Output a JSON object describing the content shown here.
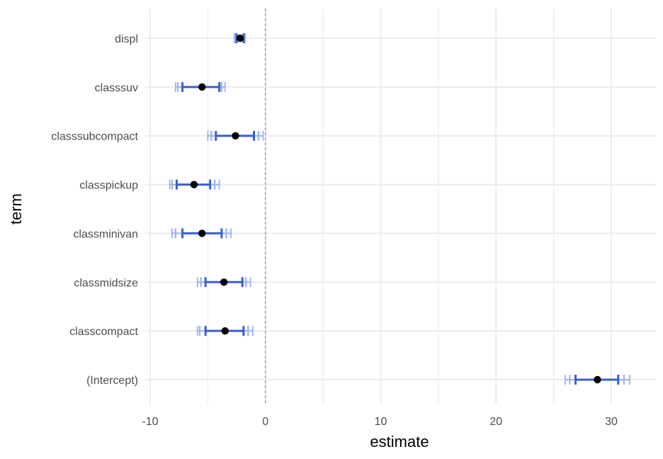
{
  "chart_data": {
    "type": "coefficient-plot",
    "xlabel": "estimate",
    "ylabel": "term",
    "xlim": [
      -10,
      33.5
    ],
    "x_ticks": [
      -10,
      0,
      10,
      20,
      30
    ],
    "x_tick_labels": [
      "-10",
      "0",
      "10",
      "20",
      "30"
    ],
    "reference_line": 0,
    "grid": true,
    "terms": [
      "displ",
      "classsuv",
      "classsubcompact",
      "classpickup",
      "classminivan",
      "classmidsize",
      "classcompact",
      "(Intercept)"
    ],
    "estimates": [
      -2.2,
      -5.5,
      -2.6,
      -6.2,
      -5.5,
      -3.6,
      -3.5,
      28.8
    ],
    "intervals": [
      {
        "inner": [
          -2.5,
          -1.9
        ],
        "mid": [
          -2.6,
          -1.85
        ],
        "outer": [
          -2.7,
          -1.75
        ]
      },
      {
        "inner": [
          -7.2,
          -4.0
        ],
        "mid": [
          -7.6,
          -3.8
        ],
        "outer": [
          -7.8,
          -3.5
        ]
      },
      {
        "inner": [
          -4.3,
          -1.0
        ],
        "mid": [
          -4.7,
          -0.6
        ],
        "outer": [
          -5.0,
          -0.2
        ]
      },
      {
        "inner": [
          -7.7,
          -4.8
        ],
        "mid": [
          -8.1,
          -4.4
        ],
        "outer": [
          -8.3,
          -4.0
        ]
      },
      {
        "inner": [
          -7.2,
          -3.8
        ],
        "mid": [
          -7.8,
          -3.4
        ],
        "outer": [
          -8.1,
          -3.0
        ]
      },
      {
        "inner": [
          -5.2,
          -2.0
        ],
        "mid": [
          -5.6,
          -1.7
        ],
        "outer": [
          -5.9,
          -1.3
        ]
      },
      {
        "inner": [
          -5.2,
          -1.9
        ],
        "mid": [
          -5.7,
          -1.5
        ],
        "outer": [
          -5.9,
          -1.1
        ]
      },
      {
        "inner": [
          26.9,
          30.6
        ],
        "mid": [
          26.4,
          31.1
        ],
        "outer": [
          26.0,
          31.6
        ]
      }
    ],
    "colors": {
      "inner": "#3a5fcd",
      "outer": "#9bb2f2",
      "point": "#000000",
      "reference": "#5b7fe0",
      "grid": "#ebebeb"
    }
  }
}
